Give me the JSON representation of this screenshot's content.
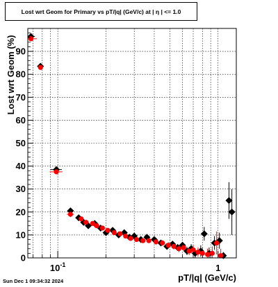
{
  "header": {
    "title": "Lost wrt Geom for Primary vs pT/|q| (GeV/c) at |  η  | <= 1.0"
  },
  "footer": {
    "timestamp": "Sun Dec  1 09:34:32 2024"
  },
  "chart_data": {
    "type": "scatter",
    "title": "Lost wrt Geom for Primary vs pT/|q| (GeV/c) at |  η  | <= 1.0",
    "xlabel": "pT/|q| (GeV/c)",
    "ylabel": "Lost wrt Geom (%)",
    "x_scale": "log",
    "xlim": [
      0.065,
      1.3
    ],
    "ylim": [
      0,
      100
    ],
    "grid": true,
    "x_ticks": [
      {
        "value": 0.1,
        "label": "10",
        "exp": "-1"
      },
      {
        "value": 1,
        "label": "1",
        "exp": ""
      }
    ],
    "y_ticks": [
      0,
      10,
      20,
      30,
      40,
      50,
      60,
      70,
      80,
      90
    ],
    "series": [
      {
        "color": "#000000",
        "marker": "diamond",
        "points": [
          {
            "x": 0.068,
            "y": 96.5,
            "xerr": 0.004,
            "yerr": 0.5
          },
          {
            "x": 0.078,
            "y": 83.5,
            "xerr": 0.002,
            "yerr": 0.6
          },
          {
            "x": 0.098,
            "y": 38.5,
            "xerr": 0.008,
            "yerr": 1.0
          },
          {
            "x": 0.12,
            "y": 20.5,
            "xerr": 0.005,
            "yerr": 1.2
          },
          {
            "x": 0.135,
            "y": 17.5,
            "xerr": 0.005,
            "yerr": 1.0
          },
          {
            "x": 0.145,
            "y": 15.5,
            "xerr": 0.005,
            "yerr": 1.0
          },
          {
            "x": 0.155,
            "y": 14.0,
            "xerr": 0.004,
            "yerr": 1.0
          },
          {
            "x": 0.17,
            "y": 15.0,
            "xerr": 0.004,
            "yerr": 1.0
          },
          {
            "x": 0.185,
            "y": 13.0,
            "xerr": 0.004,
            "yerr": 1.0
          },
          {
            "x": 0.2,
            "y": 11.0,
            "xerr": 0.004,
            "yerr": 1.0
          },
          {
            "x": 0.22,
            "y": 12.0,
            "xerr": 0.004,
            "yerr": 1.0
          },
          {
            "x": 0.24,
            "y": 10.0,
            "xerr": 0.005,
            "yerr": 1.0
          },
          {
            "x": 0.26,
            "y": 11.0,
            "xerr": 0.005,
            "yerr": 1.0
          },
          {
            "x": 0.28,
            "y": 9.0,
            "xerr": 0.005,
            "yerr": 1.0
          },
          {
            "x": 0.3,
            "y": 9.5,
            "xerr": 0.005,
            "yerr": 1.0
          },
          {
            "x": 0.33,
            "y": 8.0,
            "xerr": 0.005,
            "yerr": 1.0
          },
          {
            "x": 0.36,
            "y": 9.0,
            "xerr": 0.005,
            "yerr": 1.0
          },
          {
            "x": 0.4,
            "y": 8.0,
            "xerr": 0.005,
            "yerr": 1.2
          },
          {
            "x": 0.44,
            "y": 6.5,
            "xerr": 0.005,
            "yerr": 1.2
          },
          {
            "x": 0.48,
            "y": 5.0,
            "xerr": 0.005,
            "yerr": 1.3
          },
          {
            "x": 0.52,
            "y": 6.0,
            "xerr": 0.005,
            "yerr": 1.3
          },
          {
            "x": 0.56,
            "y": 4.5,
            "xerr": 0.005,
            "yerr": 1.5
          },
          {
            "x": 0.6,
            "y": 5.5,
            "xerr": 0.005,
            "yerr": 1.5
          },
          {
            "x": 0.64,
            "y": 3.0,
            "xerr": 0.005,
            "yerr": 1.8
          },
          {
            "x": 0.68,
            "y": 4.0,
            "xerr": 0.005,
            "yerr": 2.0
          },
          {
            "x": 0.72,
            "y": 2.0,
            "xerr": 0.005,
            "yerr": 2.0
          },
          {
            "x": 0.78,
            "y": 3.0,
            "xerr": 0.005,
            "yerr": 2.5
          },
          {
            "x": 0.82,
            "y": 10.5,
            "xerr": 0.005,
            "yerr": 3.0
          },
          {
            "x": 0.88,
            "y": 2.0,
            "xerr": 0.005,
            "yerr": 2.5
          },
          {
            "x": 0.95,
            "y": 6.5,
            "xerr": 0.005,
            "yerr": 3.0
          },
          {
            "x": 1.02,
            "y": 7.5,
            "xerr": 0.005,
            "yerr": 3.5
          },
          {
            "x": 1.08,
            "y": 1.0,
            "xerr": 0.005,
            "yerr": 1.5
          },
          {
            "x": 1.17,
            "y": 25.0,
            "xerr": 0.005,
            "yerr": 8.0
          },
          {
            "x": 1.22,
            "y": 20.0,
            "xerr": 0.005,
            "yerr": 10.0
          }
        ]
      },
      {
        "color": "#ff0000",
        "marker": "circle",
        "points": [
          {
            "x": 0.068,
            "y": 95.5,
            "xerr": 0.006,
            "yerr": 0.5
          },
          {
            "x": 0.078,
            "y": 83.0,
            "xerr": 0.002,
            "yerr": 0.6
          },
          {
            "x": 0.098,
            "y": 37.5,
            "xerr": 0.009,
            "yerr": 1.0
          },
          {
            "x": 0.12,
            "y": 19.0,
            "xerr": 0.006,
            "yerr": 1.2
          },
          {
            "x": 0.14,
            "y": 17.0,
            "xerr": 0.004,
            "yerr": 1.0
          },
          {
            "x": 0.15,
            "y": 15.5,
            "xerr": 0.004,
            "yerr": 1.0
          },
          {
            "x": 0.165,
            "y": 15.0,
            "xerr": 0.004,
            "yerr": 1.0
          },
          {
            "x": 0.175,
            "y": 14.0,
            "xerr": 0.004,
            "yerr": 1.0
          },
          {
            "x": 0.19,
            "y": 13.0,
            "xerr": 0.004,
            "yerr": 1.0
          },
          {
            "x": 0.205,
            "y": 12.0,
            "xerr": 0.004,
            "yerr": 1.0
          },
          {
            "x": 0.225,
            "y": 11.0,
            "xerr": 0.004,
            "yerr": 1.0
          },
          {
            "x": 0.245,
            "y": 10.5,
            "xerr": 0.004,
            "yerr": 1.0
          },
          {
            "x": 0.265,
            "y": 9.5,
            "xerr": 0.004,
            "yerr": 1.0
          },
          {
            "x": 0.285,
            "y": 8.5,
            "xerr": 0.004,
            "yerr": 1.0
          },
          {
            "x": 0.31,
            "y": 8.0,
            "xerr": 0.004,
            "yerr": 1.0
          },
          {
            "x": 0.34,
            "y": 7.5,
            "xerr": 0.004,
            "yerr": 1.0
          },
          {
            "x": 0.37,
            "y": 7.5,
            "xerr": 0.004,
            "yerr": 1.0
          },
          {
            "x": 0.41,
            "y": 7.0,
            "xerr": 0.004,
            "yerr": 1.2
          },
          {
            "x": 0.45,
            "y": 6.5,
            "xerr": 0.004,
            "yerr": 1.2
          },
          {
            "x": 0.49,
            "y": 5.5,
            "xerr": 0.004,
            "yerr": 1.3
          },
          {
            "x": 0.53,
            "y": 5.0,
            "xerr": 0.004,
            "yerr": 1.3
          },
          {
            "x": 0.57,
            "y": 4.0,
            "xerr": 0.004,
            "yerr": 1.5
          },
          {
            "x": 0.61,
            "y": 4.5,
            "xerr": 0.004,
            "yerr": 1.5
          },
          {
            "x": 0.66,
            "y": 3.0,
            "xerr": 0.004,
            "yerr": 1.8
          },
          {
            "x": 0.7,
            "y": 3.5,
            "xerr": 0.004,
            "yerr": 2.0
          },
          {
            "x": 0.75,
            "y": 2.5,
            "xerr": 0.004,
            "yerr": 2.0
          },
          {
            "x": 0.8,
            "y": 2.0,
            "xerr": 0.004,
            "yerr": 2.5
          },
          {
            "x": 0.86,
            "y": 1.5,
            "xerr": 0.004,
            "yerr": 2.5
          },
          {
            "x": 0.92,
            "y": 2.0,
            "xerr": 0.004,
            "yerr": 3.0
          },
          {
            "x": 0.98,
            "y": 6.5,
            "xerr": 0.004,
            "yerr": 5.0
          },
          {
            "x": 1.04,
            "y": 1.0,
            "xerr": 0.004,
            "yerr": 3.0
          }
        ]
      }
    ]
  }
}
